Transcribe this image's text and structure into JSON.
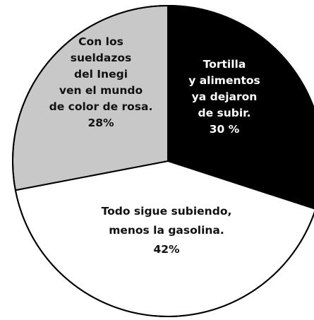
{
  "chart_data": {
    "type": "pie",
    "title": "",
    "slices": [
      {
        "label_lines": [
          "Tortilla",
          "y alimentos",
          "ya dejaron",
          "de subir."
        ],
        "percent_label": "30 %",
        "value": 30,
        "color": "#000000",
        "text_color": "#ffffff"
      },
      {
        "label_lines": [
          "Todo sigue subiendo,",
          "menos la gasolina."
        ],
        "percent_label": "42%",
        "value": 42,
        "color": "#ffffff",
        "text_color": "#111111"
      },
      {
        "label_lines": [
          "Con los",
          "sueldazos",
          "del Inegi",
          "ven el mundo",
          "de color de rosa."
        ],
        "percent_label": "28%",
        "value": 28,
        "color": "#c8c8c8",
        "text_color": "#111111"
      }
    ],
    "outline_color": "#000000"
  }
}
